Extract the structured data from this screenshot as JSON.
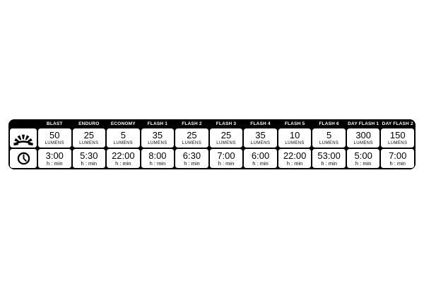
{
  "table": {
    "colors": {
      "frame": "#000000",
      "cell_background": "#ffffff",
      "header_text": "#ffffff",
      "cell_text": "#000000",
      "page_background": "#ffffff"
    },
    "row_icons": {
      "brightness": "sunburst-icon",
      "runtime": "clock-icon"
    },
    "lumens_unit": "LUMENS",
    "runtime_unit": "h : min",
    "modes": [
      {
        "name": "BLAST",
        "lumens": "50",
        "runtime": "3:00"
      },
      {
        "name": "ENDURO",
        "lumens": "25",
        "runtime": "5:30"
      },
      {
        "name": "ECONOMY",
        "lumens": "5",
        "runtime": "22:00"
      },
      {
        "name": "FLASH 1",
        "lumens": "35",
        "runtime": "8:00"
      },
      {
        "name": "FLASH 2",
        "lumens": "25",
        "runtime": "6:30"
      },
      {
        "name": "FLASH 3",
        "lumens": "25",
        "runtime": "7:00"
      },
      {
        "name": "FLASH 4",
        "lumens": "35",
        "runtime": "6:00"
      },
      {
        "name": "FLASH 5",
        "lumens": "10",
        "runtime": "22:00"
      },
      {
        "name": "FLASH 6",
        "lumens": "5",
        "runtime": "53:00"
      },
      {
        "name": "DAY FLASH 1",
        "lumens": "300",
        "runtime": "5:00"
      },
      {
        "name": "DAY FLASH 2",
        "lumens": "150",
        "runtime": "7:00"
      }
    ]
  },
  "chart_data": {
    "type": "table",
    "columns": [
      "BLAST",
      "ENDURO",
      "ECONOMY",
      "FLASH 1",
      "FLASH 2",
      "FLASH 3",
      "FLASH 4",
      "FLASH 5",
      "FLASH 6",
      "DAY FLASH 1",
      "DAY FLASH 2"
    ],
    "rows": [
      {
        "label": "Brightness",
        "unit": "LUMENS",
        "values": [
          50,
          25,
          5,
          35,
          25,
          25,
          35,
          10,
          5,
          300,
          150
        ]
      },
      {
        "label": "Runtime",
        "unit": "h : min",
        "values": [
          "3:00",
          "5:30",
          "22:00",
          "8:00",
          "6:30",
          "7:00",
          "6:00",
          "22:00",
          "53:00",
          "5:00",
          "7:00"
        ]
      }
    ],
    "title": "",
    "legend": "off",
    "grid": "off"
  }
}
